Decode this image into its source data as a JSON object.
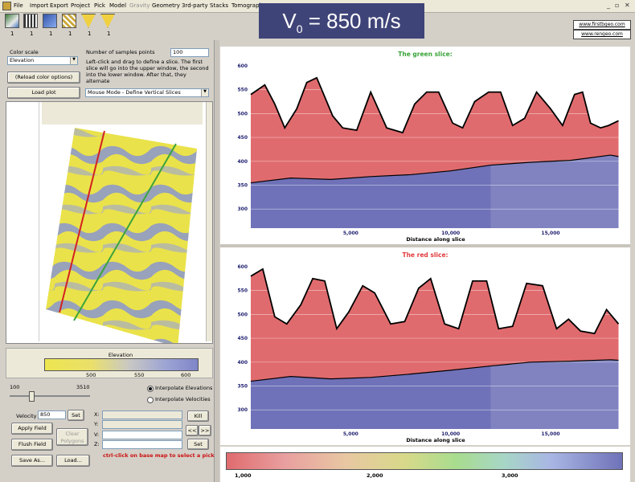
{
  "menu": [
    "File",
    "Import",
    "Export",
    "Project",
    "Pick",
    "Model",
    "Gravity",
    "Geometry",
    "3rd-party",
    "Stacks",
    "Tomograph"
  ],
  "menu_disabled": [
    "Gravity"
  ],
  "banner": {
    "prefix": "V",
    "subscript": "0",
    "suffix": "= 850 m/s"
  },
  "links": [
    "www.firstbgeo.com",
    "www.rengeo.com"
  ],
  "toolbar_numbers": [
    "1",
    "1",
    "1",
    "1",
    "1",
    "1"
  ],
  "left": {
    "color_scale_label": "Color scale",
    "color_scale_value": "Elevation",
    "samples_label": "Number of samples points",
    "samples_value": "100",
    "instructions": "Left-click and drag to define a slice. The first slice will go into the upper window, the second into the lower window. After that, they alternate",
    "reload_button": "(Reload color options)",
    "load_plot_button": "Load plot",
    "mouse_mode": "Mouse Mode - Define Vertical Slices",
    "colorbar_title": "Elevation",
    "colorbar_ticks": [
      "500",
      "550",
      "600"
    ],
    "slider_min": "100",
    "slider_max": "3510",
    "interp_elev": "Interpolate Elevations",
    "interp_vel": "Interpolate Velocities",
    "velocity_label": "Velocity",
    "velocity_value": "850",
    "set_button": "Set",
    "apply_button": "Apply Field",
    "clear_button": "Clear Polygons",
    "flush_button": "Flush Field",
    "save_button": "Save As...",
    "load_button": "Load...",
    "kill_button": "Kill",
    "prev_button": "<<",
    "next_button": ">>",
    "set2_button": "Set",
    "coord_labels": [
      "X:",
      "Y:",
      "V:",
      "Z:"
    ],
    "hint": "ctrl-click on base map to select a pick"
  },
  "top_panel": {
    "title": "The green slice:",
    "xlabel": "Distance along slice",
    "yticks": [
      "600",
      "550",
      "500",
      "450",
      "400",
      "350",
      "300"
    ],
    "xticks": [
      "5,000",
      "10,000",
      "15,000"
    ]
  },
  "bottom_panel": {
    "title": "The red slice:",
    "xlabel": "Distance along slice",
    "yticks": [
      "600",
      "550",
      "500",
      "450",
      "400",
      "350",
      "300"
    ],
    "xticks": [
      "5,000",
      "10,000",
      "15,000"
    ]
  },
  "bottom_colorbar_ticks": [
    "1,000",
    "2,000",
    "3,000"
  ],
  "colors": {
    "title_green": "#3aa43a",
    "title_red": "#e23b3b",
    "red_fill": "#e06b6e",
    "blue_fill": "#6f72b8",
    "banner_bg": "#3f4478",
    "hint": "#cc1111"
  },
  "chart_data": [
    {
      "type": "area",
      "title": "The green slice:",
      "xlabel": "Distance along slice",
      "ylabel": "",
      "xlim": [
        0,
        18500
      ],
      "ylim": [
        260,
        610
      ],
      "xticks": [
        5000,
        10000,
        15000
      ],
      "yticks": [
        300,
        350,
        400,
        450,
        500,
        550,
        600
      ],
      "series": [
        {
          "x": [
            0,
            700,
            1200,
            1700,
            2300,
            2800,
            3300,
            4100,
            4600,
            5300,
            6000,
            6800,
            7600,
            8200,
            8800,
            9400,
            10100,
            10600,
            11200,
            11900,
            12500,
            13100,
            13700,
            14300,
            15000,
            15600,
            16200,
            16600,
            17000,
            17500,
            17900,
            18400
          ],
          "values": [
            540,
            560,
            520,
            470,
            510,
            565,
            575,
            495,
            470,
            465,
            545,
            470,
            460,
            520,
            545,
            545,
            480,
            470,
            525,
            545,
            545,
            475,
            490,
            545,
            510,
            475,
            540,
            545,
            480,
            470,
            475,
            485
          ]
        },
        {
          "x": [
            0,
            2000,
            4000,
            6000,
            8000,
            10000,
            12000,
            14000,
            16000,
            18000,
            18400
          ],
          "values": [
            355,
            365,
            362,
            368,
            372,
            380,
            392,
            398,
            402,
            413,
            410
          ]
        }
      ]
    },
    {
      "type": "area",
      "title": "The red slice:",
      "xlabel": "Distance along slice",
      "ylabel": "",
      "xlim": [
        0,
        18500
      ],
      "ylim": [
        260,
        610
      ],
      "xticks": [
        5000,
        10000,
        15000
      ],
      "yticks": [
        300,
        350,
        400,
        450,
        500,
        550,
        600
      ],
      "series": [
        {
          "x": [
            0,
            600,
            1200,
            1800,
            2500,
            3100,
            3700,
            4300,
            4900,
            5600,
            6200,
            7000,
            7700,
            8400,
            9000,
            9700,
            10400,
            11100,
            11800,
            12400,
            13100,
            13800,
            14600,
            15300,
            15900,
            16500,
            17200,
            17800,
            18400
          ],
          "values": [
            580,
            595,
            495,
            480,
            520,
            575,
            570,
            470,
            505,
            560,
            545,
            480,
            485,
            555,
            575,
            480,
            470,
            570,
            570,
            470,
            475,
            565,
            560,
            470,
            490,
            465,
            460,
            510,
            480
          ]
        },
        {
          "x": [
            0,
            2000,
            4000,
            6000,
            8000,
            10000,
            12000,
            14000,
            16000,
            18000,
            18400
          ],
          "values": [
            360,
            370,
            365,
            368,
            375,
            383,
            392,
            400,
            402,
            405,
            404
          ]
        }
      ]
    }
  ]
}
